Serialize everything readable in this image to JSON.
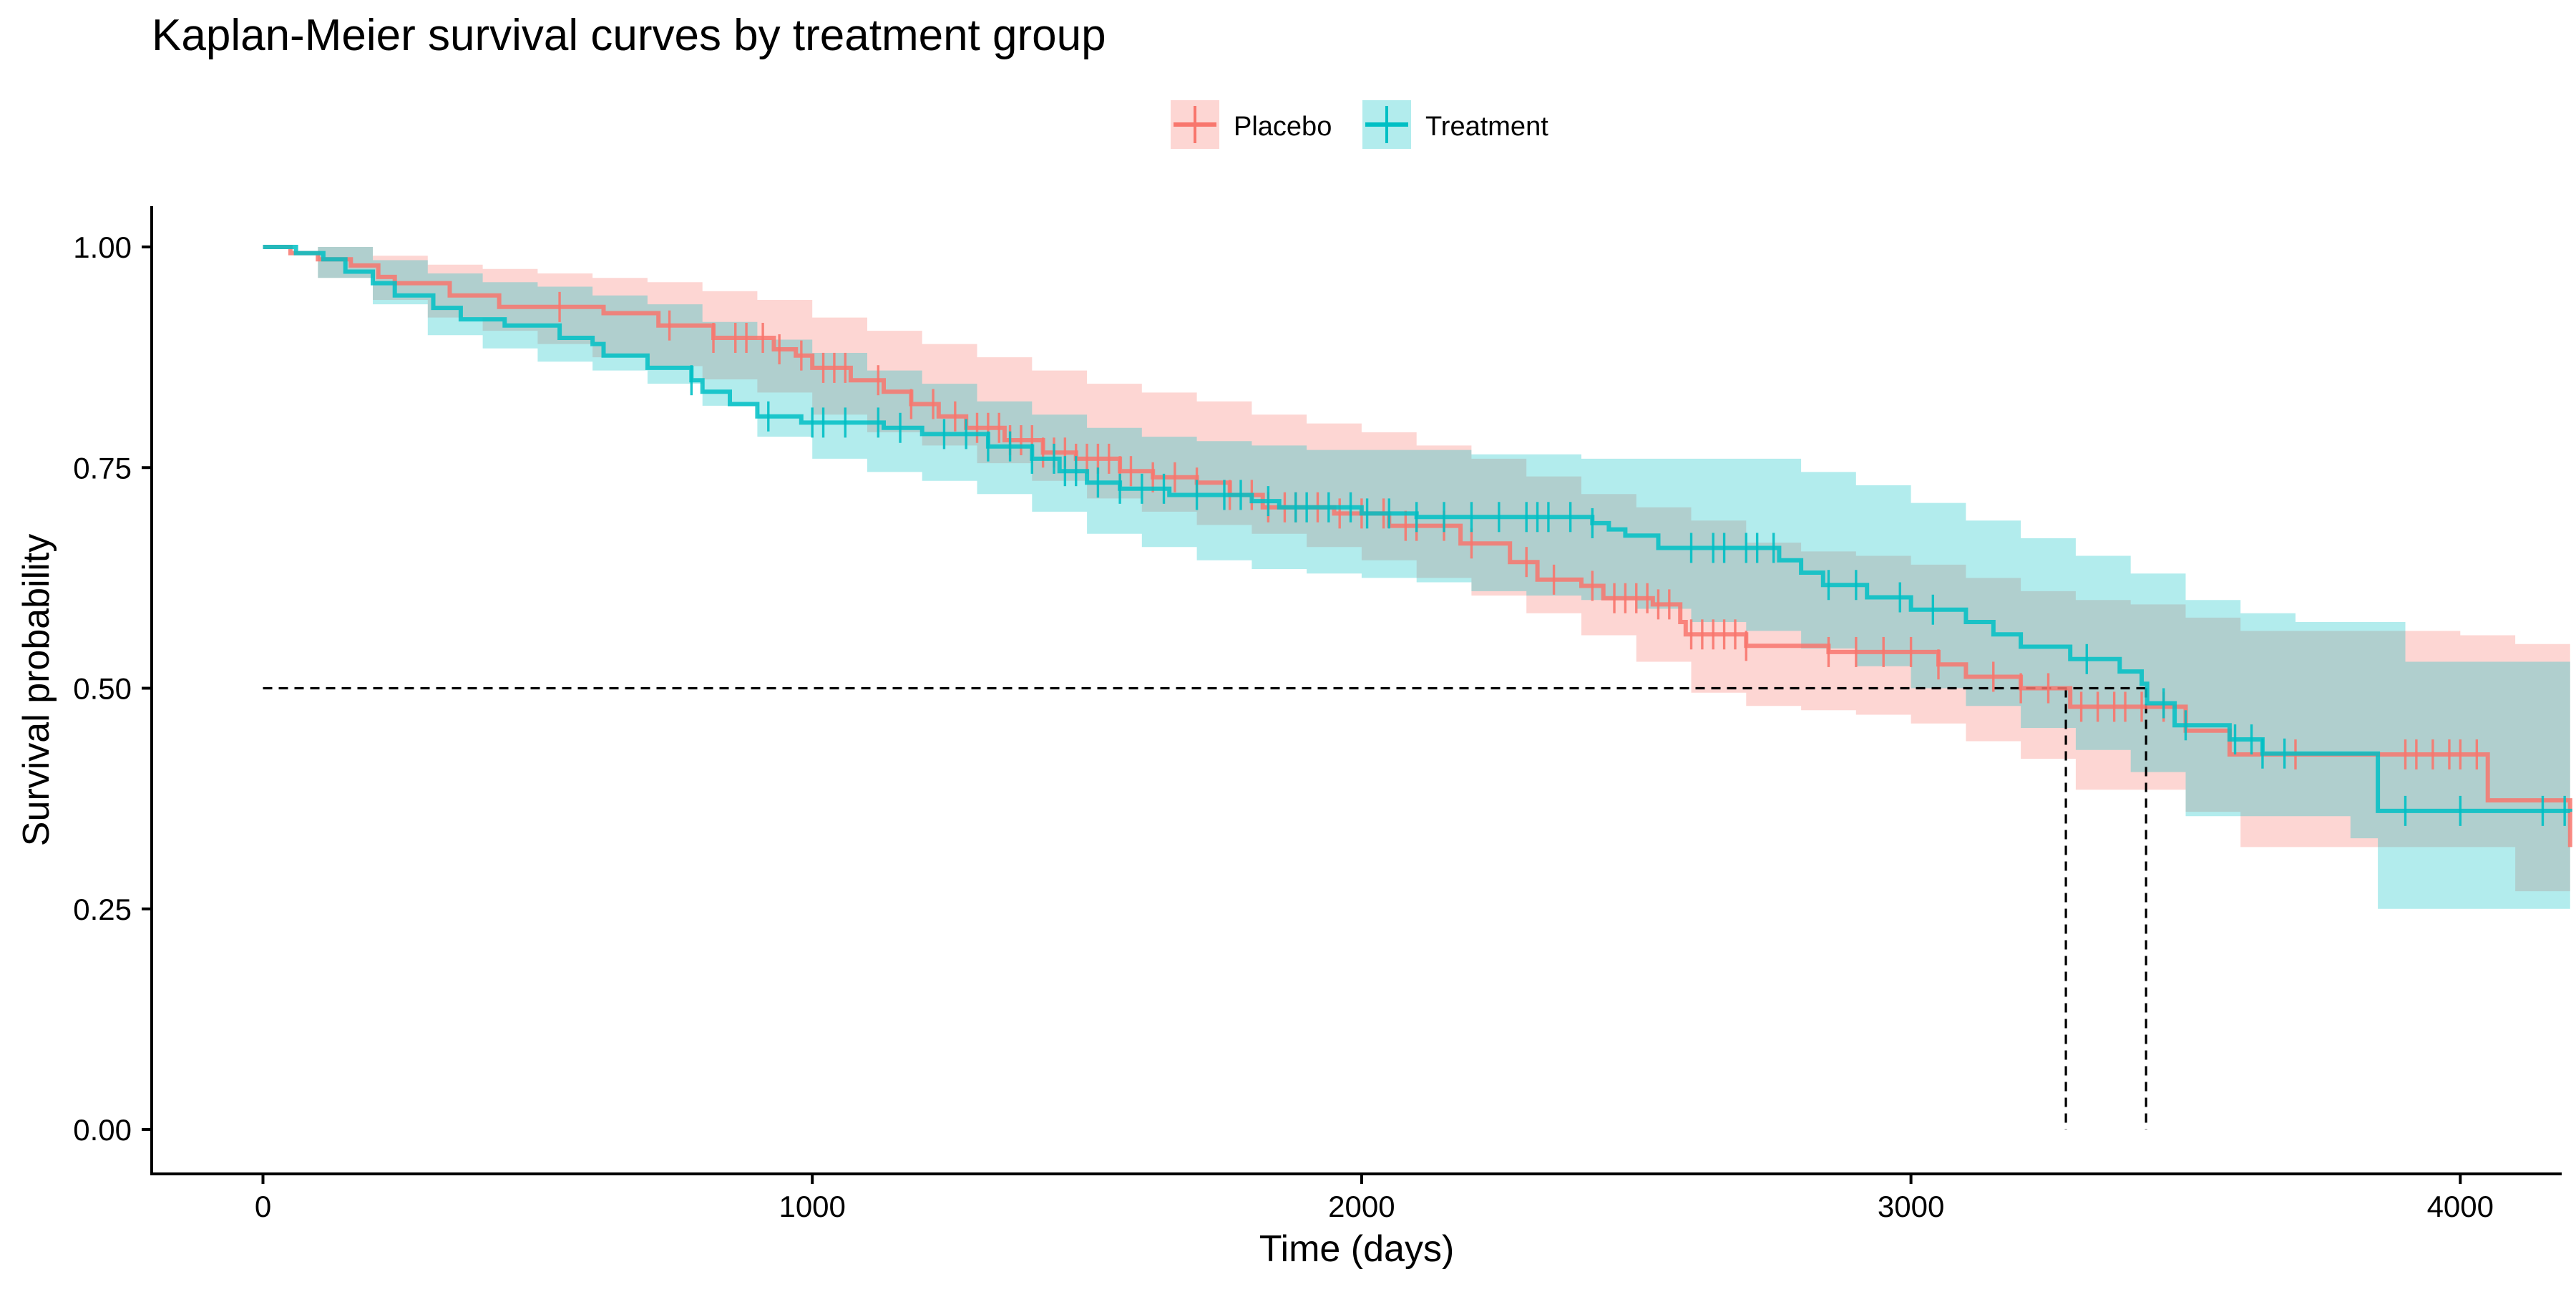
{
  "chart_data": {
    "type": "line",
    "title": "Kaplan-Meier survival curves by treatment group",
    "xlabel": "Time (days)",
    "ylabel": "Survival probability",
    "xlim": [
      -200,
      4200
    ],
    "ylim": [
      -0.05,
      1.05
    ],
    "x_ticks": [
      0,
      1000,
      2000,
      3000,
      4000
    ],
    "x_tick_labels": [
      "0",
      "1000",
      "2000",
      "3000",
      "4000"
    ],
    "y_ticks": [
      0,
      0.25,
      0.5,
      0.75,
      1.0
    ],
    "y_tick_labels": [
      "0.00",
      "0.25",
      "0.50",
      "0.75",
      "1.00"
    ],
    "grid": false,
    "legend_position": "top",
    "median_reference": {
      "y": 0.5,
      "x_values": [
        3282,
        3428
      ]
    },
    "series": [
      {
        "name": "Placebo",
        "color": "#F8766D",
        "steps": [
          [
            0,
            1.0
          ],
          [
            50,
            0.993
          ],
          [
            100,
            0.986
          ],
          [
            160,
            0.979
          ],
          [
            210,
            0.966
          ],
          [
            240,
            0.959
          ],
          [
            340,
            0.945
          ],
          [
            430,
            0.932
          ],
          [
            620,
            0.925
          ],
          [
            720,
            0.911
          ],
          [
            820,
            0.897
          ],
          [
            930,
            0.884
          ],
          [
            970,
            0.877
          ],
          [
            1000,
            0.863
          ],
          [
            1070,
            0.849
          ],
          [
            1130,
            0.836
          ],
          [
            1180,
            0.822
          ],
          [
            1230,
            0.808
          ],
          [
            1280,
            0.795
          ],
          [
            1350,
            0.781
          ],
          [
            1420,
            0.767
          ],
          [
            1480,
            0.76
          ],
          [
            1560,
            0.746
          ],
          [
            1620,
            0.739
          ],
          [
            1700,
            0.733
          ],
          [
            1760,
            0.719
          ],
          [
            1820,
            0.705
          ],
          [
            1950,
            0.698
          ],
          [
            2050,
            0.684
          ],
          [
            2180,
            0.664
          ],
          [
            2270,
            0.643
          ],
          [
            2320,
            0.623
          ],
          [
            2400,
            0.616
          ],
          [
            2440,
            0.602
          ],
          [
            2530,
            0.595
          ],
          [
            2580,
            0.575
          ],
          [
            2590,
            0.561
          ],
          [
            2700,
            0.548
          ],
          [
            2850,
            0.541
          ],
          [
            3050,
            0.527
          ],
          [
            3100,
            0.513
          ],
          [
            3200,
            0.5
          ],
          [
            3290,
            0.479
          ],
          [
            3430,
            0.479
          ],
          [
            3500,
            0.452
          ],
          [
            3580,
            0.425
          ],
          [
            4050,
            0.373
          ],
          [
            4200,
            0.32
          ]
        ],
        "censor_times": [
          540,
          740,
          820,
          860,
          880,
          910,
          940,
          980,
          1020,
          1040,
          1060,
          1120,
          1180,
          1220,
          1260,
          1300,
          1320,
          1340,
          1360,
          1380,
          1400,
          1420,
          1440,
          1460,
          1480,
          1500,
          1520,
          1540,
          1560,
          1580,
          1620,
          1660,
          1700,
          1760,
          1800,
          1830,
          1860,
          1880,
          1920,
          1960,
          2000,
          2040,
          2080,
          2100,
          2150,
          2200,
          2300,
          2350,
          2420,
          2460,
          2480,
          2500,
          2520,
          2540,
          2560,
          2600,
          2620,
          2640,
          2660,
          2680,
          2700,
          2850,
          2900,
          2950,
          3000,
          3050,
          3150,
          3200,
          3250,
          3310,
          3340,
          3370,
          3390,
          3420,
          3460,
          3700,
          3900,
          3920,
          3950,
          3980,
          4000,
          4030
        ],
        "lower": [
          [
            0,
            1.0
          ],
          [
            100,
            0.965
          ],
          [
            200,
            0.94
          ],
          [
            300,
            0.92
          ],
          [
            400,
            0.905
          ],
          [
            500,
            0.89
          ],
          [
            600,
            0.875
          ],
          [
            700,
            0.865
          ],
          [
            800,
            0.85
          ],
          [
            900,
            0.835
          ],
          [
            1000,
            0.81
          ],
          [
            1100,
            0.79
          ],
          [
            1200,
            0.775
          ],
          [
            1300,
            0.755
          ],
          [
            1400,
            0.735
          ],
          [
            1500,
            0.715
          ],
          [
            1600,
            0.7
          ],
          [
            1700,
            0.685
          ],
          [
            1800,
            0.675
          ],
          [
            1900,
            0.66
          ],
          [
            2000,
            0.645
          ],
          [
            2100,
            0.625
          ],
          [
            2200,
            0.605
          ],
          [
            2300,
            0.585
          ],
          [
            2400,
            0.56
          ],
          [
            2500,
            0.53
          ],
          [
            2600,
            0.495
          ],
          [
            2700,
            0.48
          ],
          [
            2800,
            0.475
          ],
          [
            2900,
            0.47
          ],
          [
            3000,
            0.46
          ],
          [
            3100,
            0.44
          ],
          [
            3200,
            0.42
          ],
          [
            3300,
            0.385
          ],
          [
            3400,
            0.385
          ],
          [
            3500,
            0.36
          ],
          [
            3600,
            0.32
          ],
          [
            4000,
            0.32
          ],
          [
            4100,
            0.27
          ],
          [
            4200,
            0.2
          ]
        ],
        "upper": [
          [
            0,
            1.0
          ],
          [
            100,
            1.0
          ],
          [
            200,
            0.99
          ],
          [
            300,
            0.98
          ],
          [
            400,
            0.975
          ],
          [
            500,
            0.97
          ],
          [
            600,
            0.965
          ],
          [
            700,
            0.96
          ],
          [
            800,
            0.95
          ],
          [
            900,
            0.94
          ],
          [
            1000,
            0.92
          ],
          [
            1100,
            0.905
          ],
          [
            1200,
            0.89
          ],
          [
            1300,
            0.875
          ],
          [
            1400,
            0.86
          ],
          [
            1500,
            0.845
          ],
          [
            1600,
            0.835
          ],
          [
            1700,
            0.825
          ],
          [
            1800,
            0.81
          ],
          [
            1900,
            0.8
          ],
          [
            2000,
            0.79
          ],
          [
            2100,
            0.775
          ],
          [
            2200,
            0.76
          ],
          [
            2300,
            0.74
          ],
          [
            2400,
            0.72
          ],
          [
            2500,
            0.705
          ],
          [
            2600,
            0.69
          ],
          [
            2700,
            0.665
          ],
          [
            2800,
            0.655
          ],
          [
            2900,
            0.65
          ],
          [
            3000,
            0.64
          ],
          [
            3100,
            0.625
          ],
          [
            3200,
            0.61
          ],
          [
            3300,
            0.6
          ],
          [
            3400,
            0.595
          ],
          [
            3500,
            0.58
          ],
          [
            3600,
            0.565
          ],
          [
            4000,
            0.56
          ],
          [
            4100,
            0.55
          ],
          [
            4200,
            0.55
          ]
        ]
      },
      {
        "name": "Treatment",
        "color": "#00BFC4",
        "steps": [
          [
            0,
            1.0
          ],
          [
            60,
            0.993
          ],
          [
            110,
            0.986
          ],
          [
            150,
            0.972
          ],
          [
            200,
            0.959
          ],
          [
            240,
            0.945
          ],
          [
            310,
            0.931
          ],
          [
            360,
            0.918
          ],
          [
            440,
            0.911
          ],
          [
            540,
            0.897
          ],
          [
            600,
            0.89
          ],
          [
            620,
            0.877
          ],
          [
            700,
            0.863
          ],
          [
            780,
            0.849
          ],
          [
            800,
            0.836
          ],
          [
            850,
            0.822
          ],
          [
            900,
            0.808
          ],
          [
            980,
            0.801
          ],
          [
            1130,
            0.795
          ],
          [
            1200,
            0.788
          ],
          [
            1320,
            0.774
          ],
          [
            1400,
            0.76
          ],
          [
            1450,
            0.746
          ],
          [
            1500,
            0.733
          ],
          [
            1560,
            0.726
          ],
          [
            1650,
            0.719
          ],
          [
            1800,
            0.712
          ],
          [
            1850,
            0.705
          ],
          [
            2000,
            0.698
          ],
          [
            2100,
            0.694
          ],
          [
            2420,
            0.687
          ],
          [
            2450,
            0.68
          ],
          [
            2480,
            0.673
          ],
          [
            2540,
            0.659
          ],
          [
            2760,
            0.645
          ],
          [
            2800,
            0.631
          ],
          [
            2840,
            0.617
          ],
          [
            2920,
            0.603
          ],
          [
            3000,
            0.589
          ],
          [
            3100,
            0.575
          ],
          [
            3150,
            0.561
          ],
          [
            3200,
            0.547
          ],
          [
            3290,
            0.533
          ],
          [
            3380,
            0.519
          ],
          [
            3420,
            0.505
          ],
          [
            3430,
            0.483
          ],
          [
            3480,
            0.458
          ],
          [
            3580,
            0.442
          ],
          [
            3640,
            0.426
          ],
          [
            3850,
            0.361
          ],
          [
            3970,
            0.361
          ],
          [
            4200,
            0.36
          ]
        ],
        "censor_times": [
          780,
          920,
          1000,
          1020,
          1060,
          1120,
          1160,
          1240,
          1280,
          1320,
          1360,
          1400,
          1440,
          1460,
          1480,
          1520,
          1560,
          1600,
          1640,
          1700,
          1750,
          1780,
          1830,
          1880,
          1900,
          1940,
          1980,
          2010,
          2050,
          2100,
          2150,
          2200,
          2250,
          2300,
          2320,
          2340,
          2380,
          2420,
          2600,
          2640,
          2660,
          2700,
          2720,
          2750,
          2850,
          2900,
          2980,
          3040,
          3320,
          3460,
          3500,
          3590,
          3620,
          3640,
          3680,
          3900,
          4000,
          4150,
          4190
        ],
        "lower": [
          [
            0,
            1.0
          ],
          [
            100,
            0.965
          ],
          [
            200,
            0.935
          ],
          [
            300,
            0.9
          ],
          [
            400,
            0.885
          ],
          [
            500,
            0.87
          ],
          [
            600,
            0.86
          ],
          [
            700,
            0.845
          ],
          [
            800,
            0.82
          ],
          [
            900,
            0.785
          ],
          [
            1000,
            0.76
          ],
          [
            1100,
            0.745
          ],
          [
            1200,
            0.735
          ],
          [
            1300,
            0.72
          ],
          [
            1400,
            0.7
          ],
          [
            1500,
            0.675
          ],
          [
            1600,
            0.66
          ],
          [
            1700,
            0.645
          ],
          [
            1800,
            0.635
          ],
          [
            1900,
            0.63
          ],
          [
            2000,
            0.625
          ],
          [
            2100,
            0.62
          ],
          [
            2200,
            0.61
          ],
          [
            2300,
            0.605
          ],
          [
            2400,
            0.6
          ],
          [
            2500,
            0.59
          ],
          [
            2600,
            0.575
          ],
          [
            2700,
            0.565
          ],
          [
            2800,
            0.545
          ],
          [
            2900,
            0.525
          ],
          [
            3000,
            0.5
          ],
          [
            3100,
            0.48
          ],
          [
            3200,
            0.455
          ],
          [
            3300,
            0.43
          ],
          [
            3400,
            0.405
          ],
          [
            3500,
            0.355
          ],
          [
            3600,
            0.355
          ],
          [
            3800,
            0.33
          ],
          [
            3850,
            0.25
          ],
          [
            4000,
            0.25
          ],
          [
            4200,
            0.25
          ]
        ],
        "upper": [
          [
            0,
            1.0
          ],
          [
            100,
            1.0
          ],
          [
            200,
            0.985
          ],
          [
            300,
            0.97
          ],
          [
            400,
            0.96
          ],
          [
            500,
            0.955
          ],
          [
            600,
            0.945
          ],
          [
            700,
            0.935
          ],
          [
            800,
            0.915
          ],
          [
            900,
            0.895
          ],
          [
            1000,
            0.88
          ],
          [
            1100,
            0.86
          ],
          [
            1200,
            0.845
          ],
          [
            1300,
            0.825
          ],
          [
            1400,
            0.81
          ],
          [
            1500,
            0.795
          ],
          [
            1600,
            0.785
          ],
          [
            1700,
            0.78
          ],
          [
            1800,
            0.775
          ],
          [
            1900,
            0.77
          ],
          [
            2000,
            0.77
          ],
          [
            2100,
            0.77
          ],
          [
            2200,
            0.765
          ],
          [
            2300,
            0.765
          ],
          [
            2400,
            0.76
          ],
          [
            2500,
            0.76
          ],
          [
            2600,
            0.76
          ],
          [
            2700,
            0.76
          ],
          [
            2800,
            0.745
          ],
          [
            2900,
            0.73
          ],
          [
            3000,
            0.71
          ],
          [
            3100,
            0.69
          ],
          [
            3200,
            0.67
          ],
          [
            3300,
            0.65
          ],
          [
            3400,
            0.63
          ],
          [
            3500,
            0.6
          ],
          [
            3600,
            0.585
          ],
          [
            3700,
            0.575
          ],
          [
            3800,
            0.575
          ],
          [
            3900,
            0.53
          ],
          [
            4200,
            0.53
          ]
        ]
      }
    ]
  }
}
